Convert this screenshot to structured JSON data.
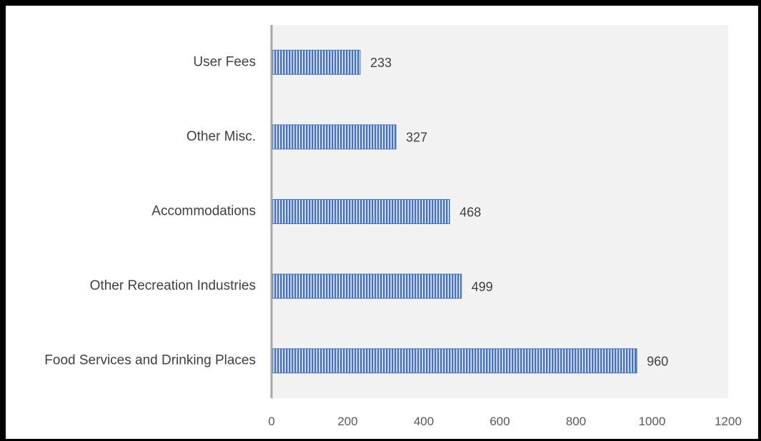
{
  "chart_data": {
    "type": "bar",
    "orientation": "horizontal",
    "categories": [
      "Food Services and Drinking Places",
      "Other Recreation Industries",
      "Accommodations",
      "Other Misc.",
      "User Fees"
    ],
    "values": [
      960,
      499,
      468,
      327,
      233
    ],
    "xlim": [
      0,
      1200
    ],
    "xticks": [
      "0",
      "200",
      "400",
      "600",
      "800",
      "1000",
      "1200"
    ],
    "title": "",
    "xlabel": "",
    "ylabel": "",
    "grid": false,
    "legend": "none",
    "data_labels": true,
    "colors": {
      "bar": "#4472c4",
      "bar_stripe": "#ffffff",
      "plot_background": "#f2f2f2",
      "axis": "#a6a6a6"
    }
  }
}
